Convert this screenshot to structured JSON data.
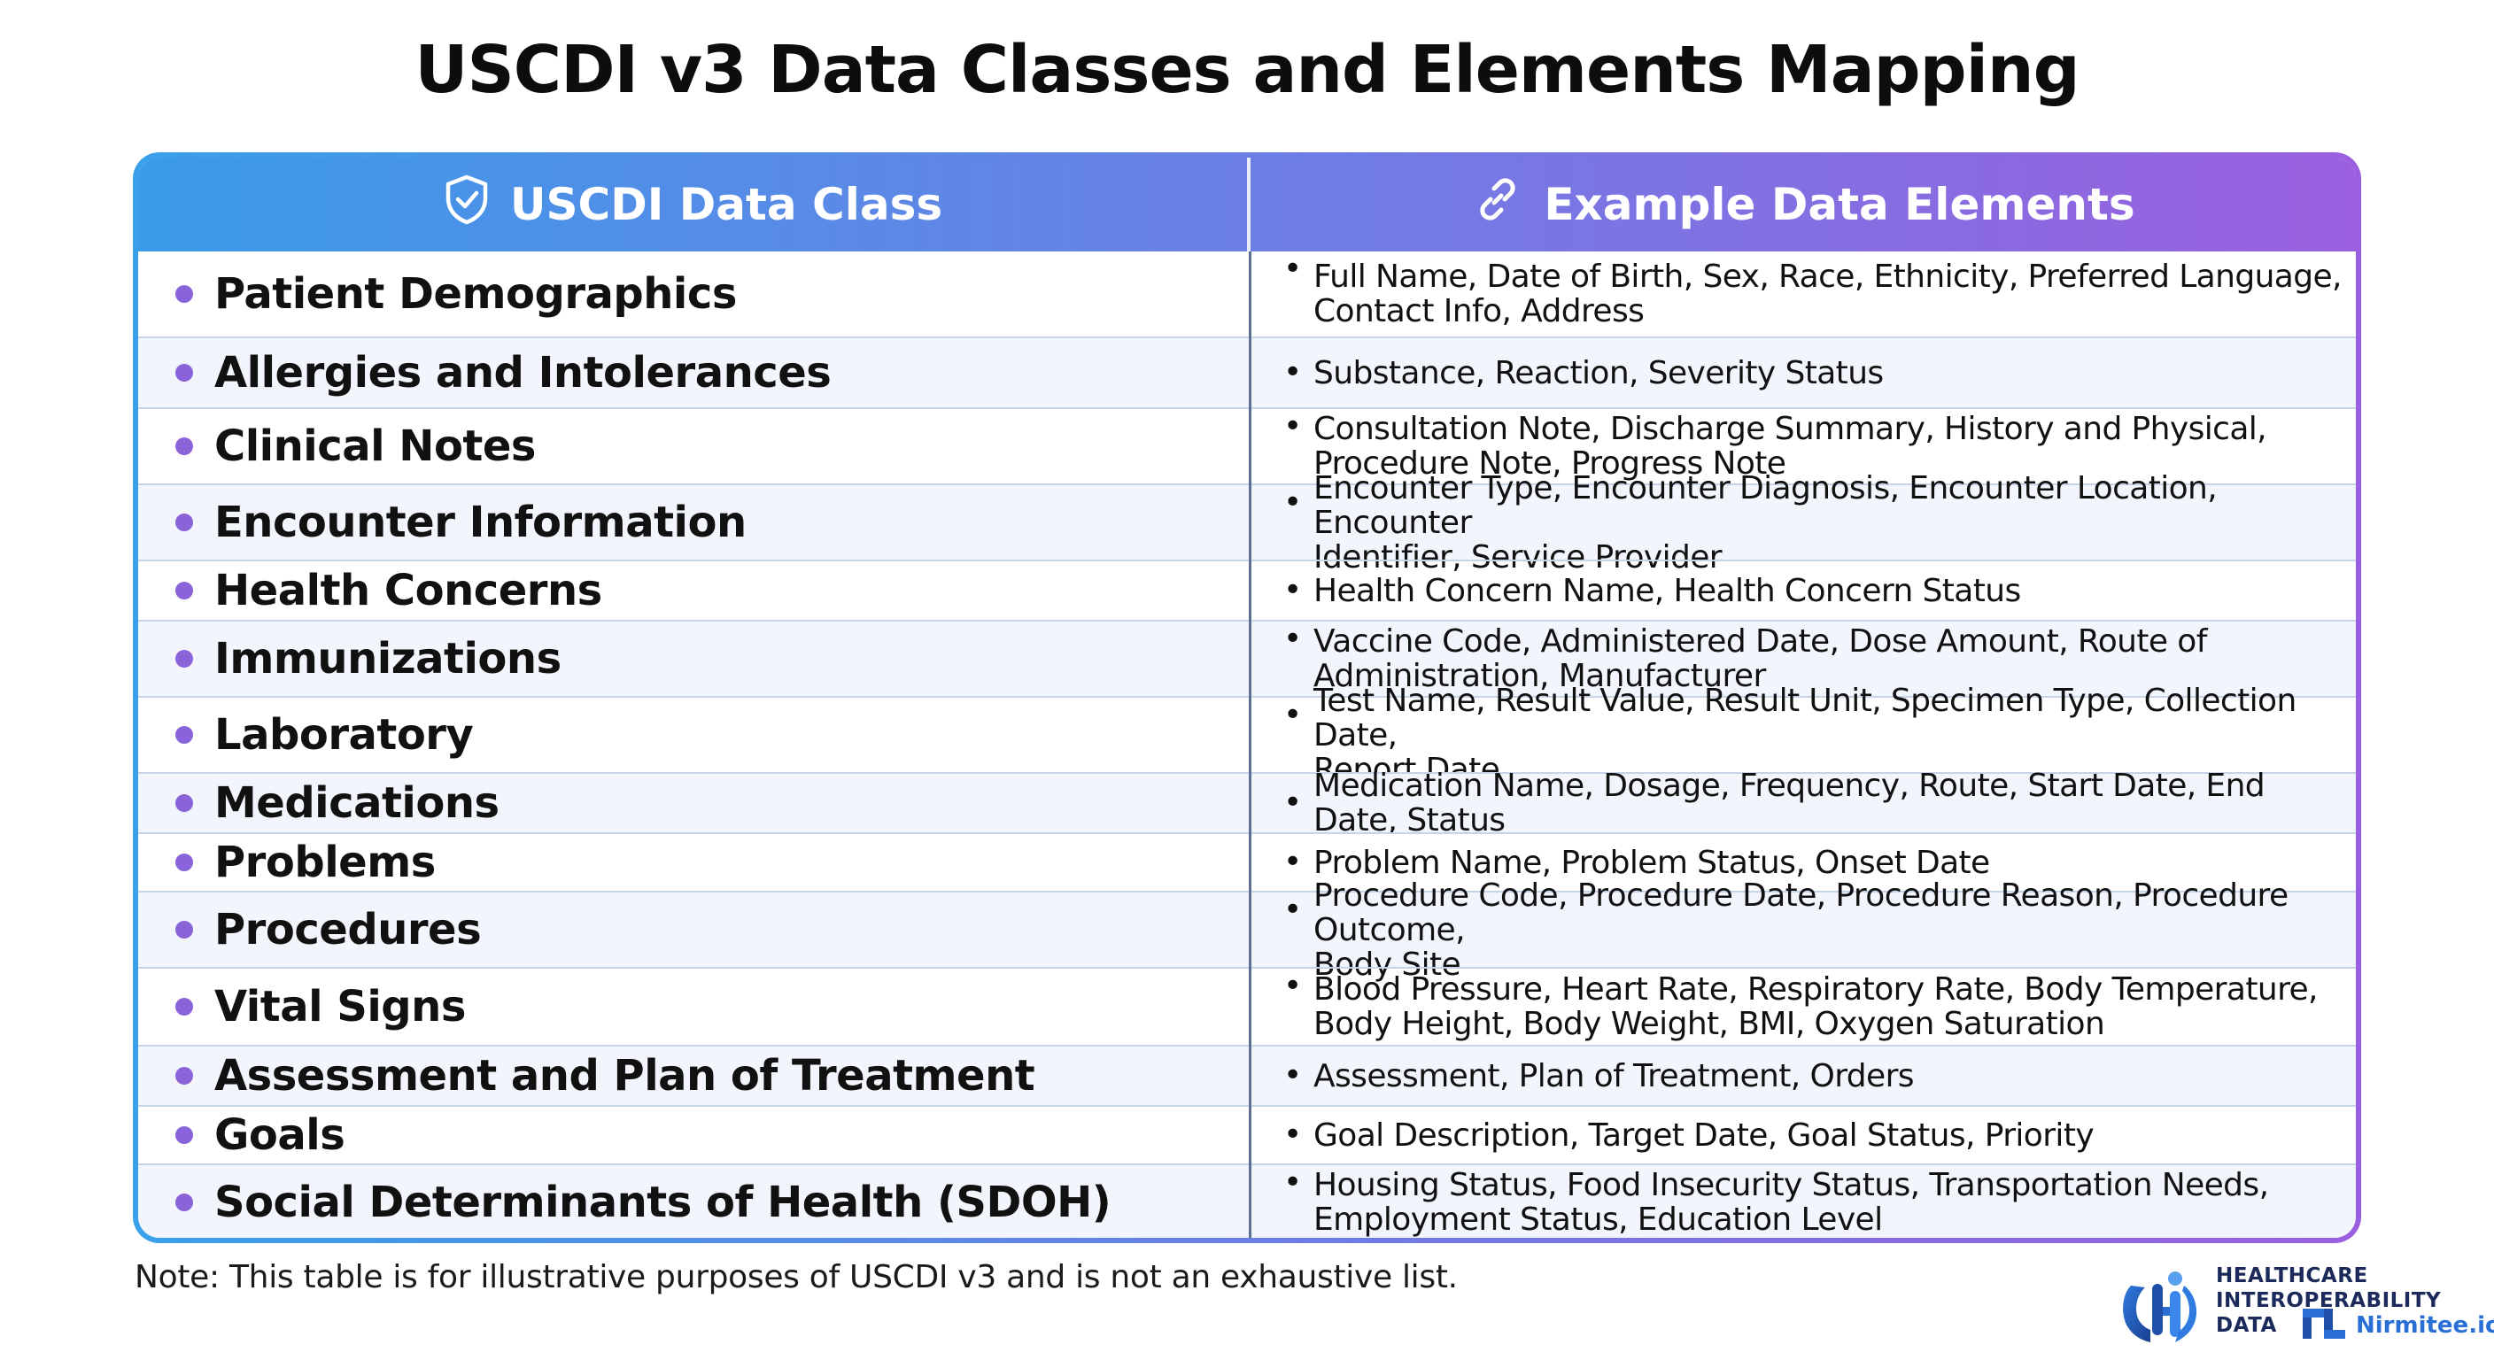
{
  "title": "USCDI v3 Data Classes and Elements Mapping",
  "header": {
    "class_column": "USCDI Data Class",
    "elements_column": "Example Data Elements",
    "class_icon": "shield-check-icon",
    "elements_icon": "link-icon"
  },
  "rows": [
    {
      "data_class": "Patient Demographics",
      "elements": "Full Name, Date of Birth, Sex, Race, Ethnicity, Preferred Language,",
      "elements_cont": "Contact Info, Address"
    },
    {
      "data_class": "Allergies and Intolerances",
      "elements": "Substance, Reaction, Severity Status",
      "elements_cont": ""
    },
    {
      "data_class": "Clinical Notes",
      "elements": "Consultation Note, Discharge Summary, History and Physical,",
      "elements_cont": "Procedure Note, Progress Note"
    },
    {
      "data_class": "Encounter Information",
      "elements": "Encounter Type, Encounter Diagnosis, Encounter Location, Encounter",
      "elements_cont": "Identifier, Service Provider"
    },
    {
      "data_class": "Health Concerns",
      "elements": "Health Concern Name, Health Concern Status",
      "elements_cont": ""
    },
    {
      "data_class": "Immunizations",
      "elements": "Vaccine Code, Administered Date, Dose Amount, Route of",
      "elements_cont": "Administration, Manufacturer"
    },
    {
      "data_class": "Laboratory",
      "elements": "Test Name, Result Value, Result Unit, Specimen Type, Collection Date,",
      "elements_cont": "Report Date"
    },
    {
      "data_class": "Medications",
      "elements": "Medication Name, Dosage, Frequency, Route, Start Date, End Date, Status",
      "elements_cont": ""
    },
    {
      "data_class": "Problems",
      "elements": "Problem Name, Problem Status, Onset Date",
      "elements_cont": ""
    },
    {
      "data_class": "Procedures",
      "elements": "Procedure Code, Procedure Date, Procedure Reason, Procedure Outcome,",
      "elements_cont": "Body Site"
    },
    {
      "data_class": "Vital Signs",
      "elements": "Blood Pressure, Heart Rate, Respiratory Rate, Body Temperature,",
      "elements_cont": "Body Height, Body Weight, BMI, Oxygen Saturation"
    },
    {
      "data_class": "Assessment and Plan of Treatment",
      "elements": "Assessment, Plan of Treatment, Orders",
      "elements_cont": ""
    },
    {
      "data_class": "Goals",
      "elements": "Goal Description, Target Date, Goal Status, Priority",
      "elements_cont": ""
    },
    {
      "data_class": "Social Determinants of Health (SDOH)",
      "elements": "Housing Status, Food Insecurity Status, Transportation Needs,",
      "elements_cont": "Employment Status, Education Level"
    }
  ],
  "note": "Note: This table is for illustrative purposes of USCDI v3 and is not an exhaustive list.",
  "logo": {
    "line1": "HEALTHCARE",
    "line2": "INTEROPERABILITY",
    "line3": "DATA",
    "brand": "Nirmitee.io",
    "icon": "hi-monogram-icon"
  },
  "colors": {
    "header_start": "#3a9be9",
    "header_end": "#9a60df",
    "bullet": "#8b63d9",
    "row_alt": "#f2f6fc"
  }
}
